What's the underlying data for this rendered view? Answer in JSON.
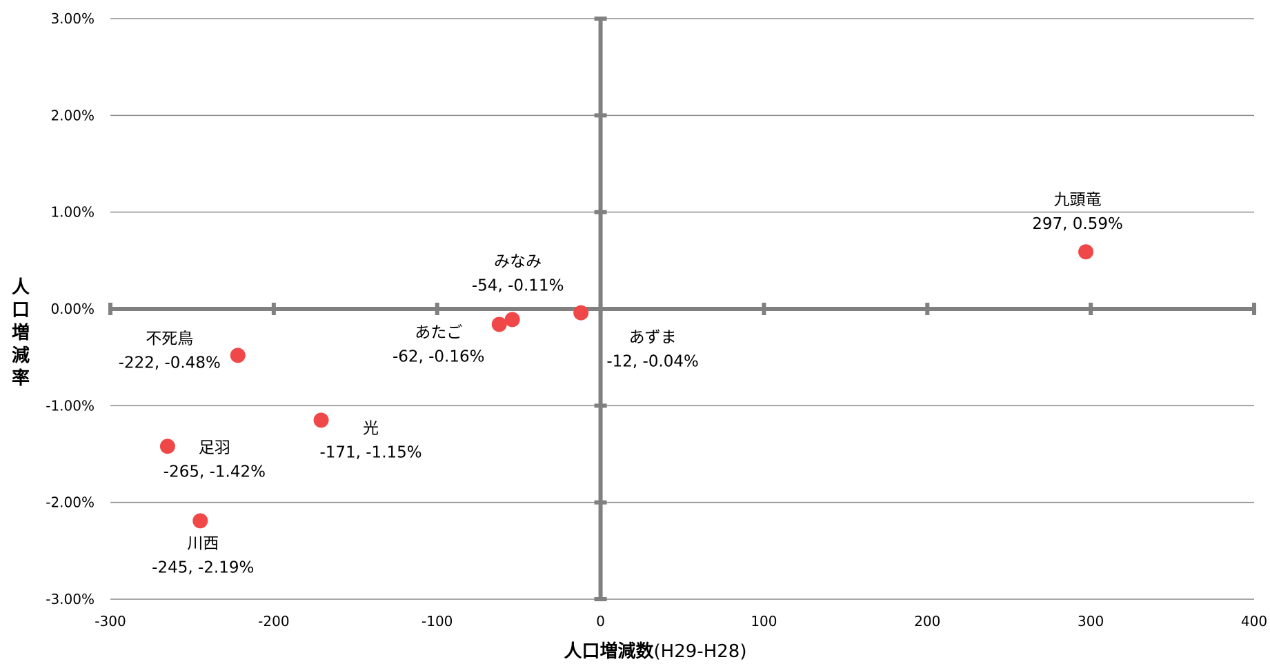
{
  "chart_data": {
    "type": "scatter",
    "xlabel": "人口増減数",
    "xlabel_suffix": "(H29-H28)",
    "ylabel": "人口増減率",
    "xlim": [
      -300,
      400
    ],
    "ylim": [
      -3.0,
      3.0
    ],
    "x_ticks": [
      "-300",
      "-200",
      "-100",
      "0",
      "100",
      "200",
      "300",
      "400"
    ],
    "y_ticks": [
      "-3.00%",
      "-2.00%",
      "-1.00%",
      "0.00%",
      "1.00%",
      "2.00%",
      "3.00%"
    ],
    "grid": true,
    "marker_color": "#f04848",
    "axis_color": "#808080",
    "points": [
      {
        "name": "九頭竜",
        "x": 297,
        "y": 0.59,
        "value_label": "297, 0.59%"
      },
      {
        "name": "みなみ",
        "x": -54,
        "y": -0.11,
        "value_label": "-54, -0.11%"
      },
      {
        "name": "あたご",
        "x": -62,
        "y": -0.16,
        "value_label": "-62, -0.16%"
      },
      {
        "name": "あずま",
        "x": -12,
        "y": -0.04,
        "value_label": "-12, -0.04%"
      },
      {
        "name": "不死鳥",
        "x": -222,
        "y": -0.48,
        "value_label": "-222, -0.48%"
      },
      {
        "name": "光",
        "x": -171,
        "y": -1.15,
        "value_label": "-171, -1.15%"
      },
      {
        "name": "足羽",
        "x": -265,
        "y": -1.42,
        "value_label": "-265, -1.42%"
      },
      {
        "name": "川西",
        "x": -245,
        "y": -2.19,
        "value_label": "-245, -2.19%"
      }
    ]
  }
}
